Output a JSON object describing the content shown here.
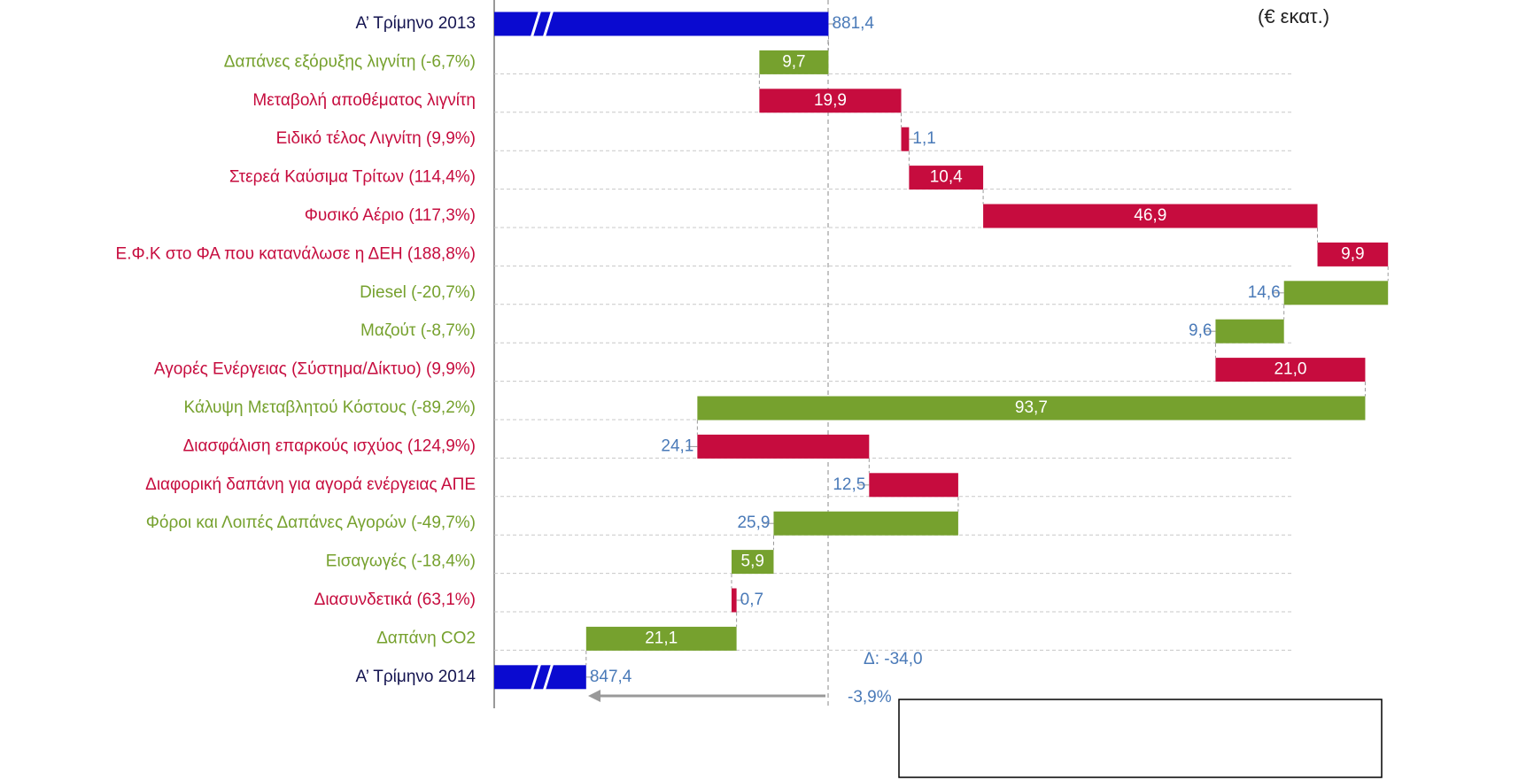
{
  "chart_data": {
    "type": "waterfall",
    "unit_label": "(€ εκατ.)",
    "categories": [
      "Α’ Τρίμηνο 2013",
      "Δαπάνες εξόρυξης λιγνίτη (-6,7%)",
      "Μεταβολή αποθέματος λιγνίτη",
      "Ειδικό τέλος Λιγνίτη (9,9%)",
      "Στερεά Καύσιμα Τρίτων (114,4%)",
      "Φυσικό Αέριο (117,3%)",
      "Ε.Φ.Κ στο ΦΑ που κατανάλωσε η ΔΕΗ  (188,8%)",
      "Diesel (-20,7%)",
      "Μαζούτ (-8,7%)",
      "Αγορές Ενέργειας (Σύστημα/Δίκτυο) (9,9%)",
      "Κάλυψη Μεταβλητού Κόστους  (-89,2%)",
      "Διασφάλιση επαρκούς ισχύος (124,9%)",
      "Διαφορική δαπάνη για αγορά ενέργειας ΑΠΕ",
      "Φόροι και Λοιπές Δαπάνες Αγορών (-49,7%)",
      "Εισαγωγές (-18,4%)",
      "Διασυνδετικά (63,1%)",
      "Δαπάνη CO2",
      "Α’ Τρίμηνο 2014"
    ],
    "values": [
      881.4,
      -9.7,
      19.9,
      1.1,
      10.4,
      46.9,
      9.9,
      -14.6,
      -9.6,
      21.0,
      -93.7,
      24.1,
      12.5,
      -25.9,
      -5.9,
      0.7,
      -21.1,
      847.4
    ],
    "value_labels": [
      "881,4",
      "9,7",
      "19,9",
      "1,1",
      "10,4",
      "46,9",
      "9,9",
      "14,6",
      "9,6",
      "21,0",
      "93,7",
      "24,1",
      "12,5",
      "25,9",
      "5,9",
      "0,7",
      "21,1",
      "847,4"
    ],
    "colors": [
      "#0a0ad0",
      "#76a12e",
      "#c60c3e",
      "#c60c3e",
      "#c60c3e",
      "#c60c3e",
      "#c60c3e",
      "#76a12e",
      "#76a12e",
      "#c60c3e",
      "#76a12e",
      "#c60c3e",
      "#c60c3e",
      "#76a12e",
      "#76a12e",
      "#c60c3e",
      "#76a12e",
      "#0a0ad0"
    ],
    "xlim": [
      834.5,
      960
    ],
    "annotations": [
      "Δ: -34,0",
      "-3,9%"
    ]
  }
}
